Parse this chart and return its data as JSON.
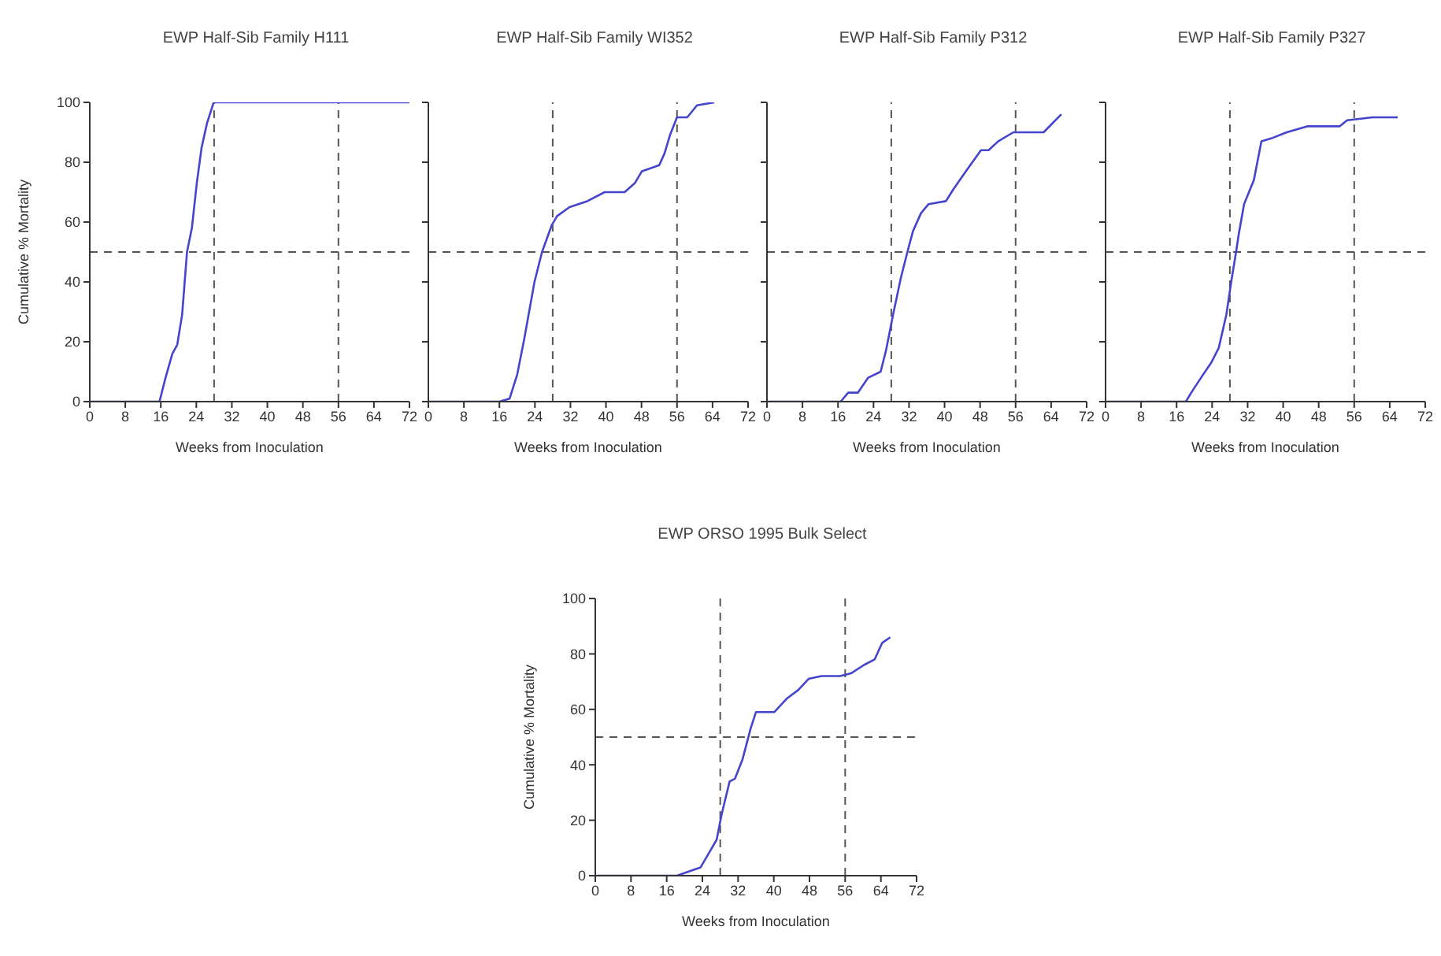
{
  "chart_data": [
    {
      "type": "line",
      "title": "EWP Half-Sib Family H111",
      "xlabel": "Weeks from Inoculation",
      "ylabel": "Cumulative % Mortality",
      "x": [
        0,
        15.7,
        17,
        18.6,
        19.7,
        20.8,
        21.9,
        23,
        24.1,
        25.2,
        26.4,
        27.9,
        72
      ],
      "series": [
        {
          "color": "#4444cc",
          "values": [
            0,
            0,
            7.6,
            16,
            19,
            29,
            50,
            58,
            73,
            85,
            93,
            100,
            100
          ]
        }
      ],
      "xlim": [
        0,
        72
      ],
      "xticks": [
        0,
        8,
        16,
        24,
        32,
        40,
        48,
        56,
        64,
        72
      ],
      "ylim": [
        0,
        100
      ],
      "yticks": [
        0,
        20,
        40,
        60,
        80,
        100
      ],
      "grid": false,
      "marker": "none",
      "line_style": "solid",
      "ref_lines": [
        {
          "axis": "x",
          "value": 28,
          "color": "#555555",
          "line_style": "dashed"
        },
        {
          "axis": "x",
          "value": 56,
          "color": "#555555",
          "line_style": "dashed"
        },
        {
          "axis": "y",
          "value": 50,
          "color": "#555555",
          "line_style": "dashed"
        }
      ]
    },
    {
      "type": "line",
      "title": "EWP Half-Sib Family WI352",
      "xlabel": "Weeks from Inoculation",
      "x": [
        0,
        16,
        18.3,
        20,
        21.6,
        23.9,
        25.6,
        27.8,
        29,
        31.8,
        35.8,
        39.7,
        44.2,
        46.5,
        48.1,
        52,
        53.2,
        54.4,
        56,
        58.3,
        60.5,
        64.4
      ],
      "series": [
        {
          "color": "#4444cc",
          "values": [
            0,
            0,
            1,
            9,
            21,
            40,
            50,
            59,
            62,
            65,
            67,
            70,
            70,
            73,
            77,
            79,
            83,
            89,
            95,
            95,
            99,
            100
          ]
        }
      ],
      "xlim": [
        0,
        72
      ],
      "xticks": [
        0,
        8,
        16,
        24,
        32,
        40,
        48,
        56,
        64,
        72
      ],
      "ylim": [
        0,
        100
      ],
      "yticks": [
        0,
        20,
        40,
        60,
        80,
        100
      ],
      "tick_labels": "x",
      "grid": false,
      "marker": "none",
      "line_style": "solid",
      "ref_lines": [
        {
          "axis": "x",
          "value": 28,
          "color": "#555555",
          "line_style": "dashed"
        },
        {
          "axis": "x",
          "value": 56,
          "color": "#555555",
          "line_style": "dashed"
        },
        {
          "axis": "y",
          "value": 50,
          "color": "#555555",
          "line_style": "dashed"
        }
      ]
    },
    {
      "type": "line",
      "title": "EWP Half-Sib Family P312",
      "xlabel": "Weeks from Inoculation",
      "x": [
        0,
        16.6,
        18.3,
        20.5,
        22.8,
        25.6,
        26.8,
        28.4,
        30.1,
        31.8,
        32.9,
        34.7,
        36.4,
        40.3,
        42,
        44.8,
        48.2,
        49.9,
        52.1,
        55.5,
        62.3,
        66.3
      ],
      "series": [
        {
          "color": "#4444cc",
          "values": [
            0,
            0,
            3,
            3,
            8,
            10,
            17,
            29,
            41,
            51,
            57,
            63,
            66,
            67,
            71,
            77,
            84,
            84,
            87,
            90,
            90,
            96
          ]
        }
      ],
      "xlim": [
        0,
        72
      ],
      "xticks": [
        0,
        8,
        16,
        24,
        32,
        40,
        48,
        56,
        64,
        72
      ],
      "ylim": [
        0,
        100
      ],
      "yticks": [
        0,
        20,
        40,
        60,
        80,
        100
      ],
      "tick_labels": "x",
      "grid": false,
      "marker": "none",
      "line_style": "solid",
      "ref_lines": [
        {
          "axis": "x",
          "value": 28,
          "color": "#555555",
          "line_style": "dashed"
        },
        {
          "axis": "x",
          "value": 56,
          "color": "#555555",
          "line_style": "dashed"
        },
        {
          "axis": "y",
          "value": 50,
          "color": "#555555",
          "line_style": "dashed"
        }
      ]
    },
    {
      "type": "line",
      "title": "EWP Half-Sib Family P327",
      "xlabel": "Weeks from Inoculation",
      "x": [
        0,
        18.1,
        19.3,
        21.5,
        23.8,
        25.5,
        27.2,
        28.3,
        29.5,
        30,
        31.2,
        33.4,
        35.1,
        37.4,
        40.8,
        45.4,
        52.7,
        54.4,
        60.1,
        65.8
      ],
      "series": [
        {
          "color": "#4444cc",
          "values": [
            0,
            0,
            3,
            8,
            13,
            18,
            29,
            40,
            51,
            56,
            66,
            74,
            87,
            88,
            90,
            92,
            92,
            94,
            95,
            95
          ]
        }
      ],
      "xlim": [
        0,
        72
      ],
      "xticks": [
        0,
        8,
        16,
        24,
        32,
        40,
        48,
        56,
        64,
        72
      ],
      "ylim": [
        0,
        100
      ],
      "yticks": [
        0,
        20,
        40,
        60,
        80,
        100
      ],
      "tick_labels": "x",
      "grid": false,
      "marker": "none",
      "line_style": "solid",
      "ref_lines": [
        {
          "axis": "x",
          "value": 28,
          "color": "#555555",
          "line_style": "dashed"
        },
        {
          "axis": "x",
          "value": 56,
          "color": "#555555",
          "line_style": "dashed"
        },
        {
          "axis": "y",
          "value": 50,
          "color": "#555555",
          "line_style": "dashed"
        }
      ]
    },
    {
      "type": "line",
      "title": "EWP ORSO 1995 Bulk Select",
      "xlabel": "Weeks from Inoculation",
      "ylabel": "Cumulative % Mortality",
      "x": [
        0,
        18.3,
        21.8,
        23.6,
        25.4,
        27.2,
        28.3,
        30.1,
        31.3,
        33,
        34.8,
        36,
        40.1,
        43,
        45.5,
        47.8,
        50.7,
        54.9,
        57.3,
        60.2,
        62.6,
        64.3,
        66.1
      ],
      "series": [
        {
          "color": "#4444cc",
          "values": [
            0,
            0,
            2,
            3,
            8,
            13,
            22,
            34,
            35,
            42,
            53,
            59,
            59,
            64,
            67,
            71,
            72,
            72,
            73,
            76,
            78,
            84,
            86
          ]
        }
      ],
      "xlim": [
        0,
        72
      ],
      "xticks": [
        0,
        8,
        16,
        24,
        32,
        40,
        48,
        56,
        64,
        72
      ],
      "ylim": [
        0,
        100
      ],
      "yticks": [
        0,
        20,
        40,
        60,
        80,
        100
      ],
      "grid": false,
      "marker": "none",
      "line_style": "solid",
      "ref_lines": [
        {
          "axis": "x",
          "value": 28,
          "color": "#555555",
          "line_style": "dashed"
        },
        {
          "axis": "x",
          "value": 56,
          "color": "#555555",
          "line_style": "dashed"
        },
        {
          "axis": "y",
          "value": 50,
          "color": "#555555",
          "line_style": "dashed"
        }
      ]
    }
  ]
}
